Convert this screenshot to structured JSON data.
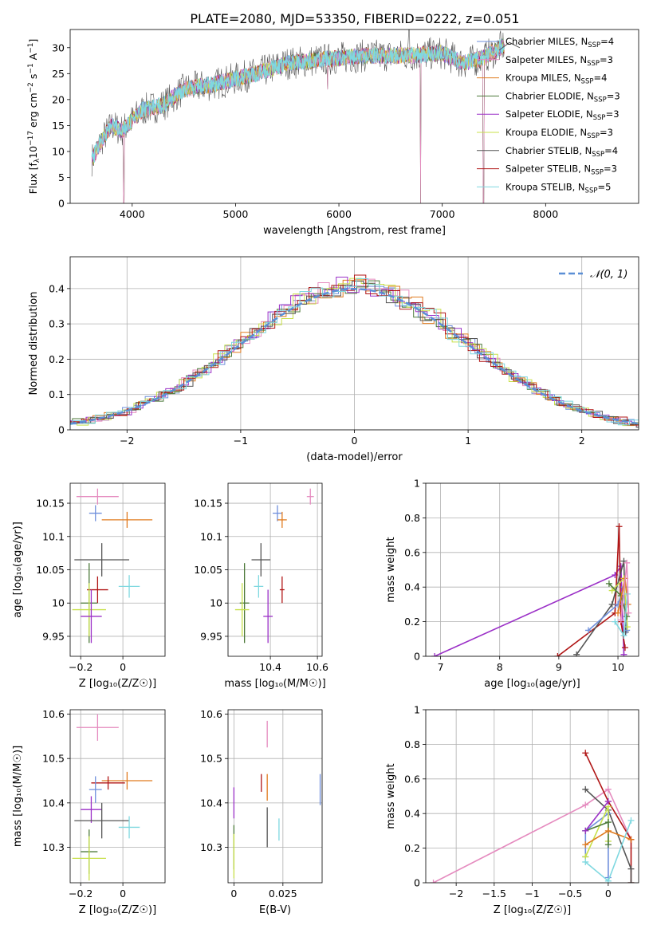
{
  "title": "PLATE=2080, MJD=53350, FIBERID=0222, z=0.051",
  "colors": {
    "chabrier_miles": "#6f8fdc",
    "salpeter_miles": "#e58bbf",
    "kroupa_miles": "#e07b1f",
    "chabrier_elodie": "#4d7a3a",
    "salpeter_elodie": "#9b30c7",
    "kroupa_elodie": "#c8e04a",
    "chabrier_stelib": "#555555",
    "salpeter_stelib": "#b01515",
    "kroupa_stelib": "#7fd8e0",
    "gaussian": "#5b8fd6",
    "grid": "#b0b0b0"
  },
  "legend": [
    {
      "label": "Chabrier MILES, N",
      "sub": "SSP",
      "tail": "=4",
      "color": "chabrier_miles"
    },
    {
      "label": "Salpeter MILES, N",
      "sub": "SSP",
      "tail": "=3",
      "color": "salpeter_miles"
    },
    {
      "label": "Kroupa MILES, N",
      "sub": "SSP",
      "tail": "=4",
      "color": "kroupa_miles"
    },
    {
      "label": "Chabrier ELODIE, N",
      "sub": "SSP",
      "tail": "=3",
      "color": "chabrier_elodie"
    },
    {
      "label": "Salpeter ELODIE, N",
      "sub": "SSP",
      "tail": "=3",
      "color": "salpeter_elodie"
    },
    {
      "label": "Kroupa ELODIE, N",
      "sub": "SSP",
      "tail": "=3",
      "color": "kroupa_elodie"
    },
    {
      "label": "Chabrier STELIB, N",
      "sub": "SSP",
      "tail": "=4",
      "color": "chabrier_stelib"
    },
    {
      "label": "Salpeter STELIB, N",
      "sub": "SSP",
      "tail": "=3",
      "color": "salpeter_stelib"
    },
    {
      "label": "Kroupa STELIB, N",
      "sub": "SSP",
      "tail": "=5",
      "color": "kroupa_stelib"
    }
  ],
  "chart_data": [
    {
      "id": "spectrum",
      "type": "line",
      "xlabel": "wavelength [Angstrom, rest frame]",
      "ylabel": "Flux [f",
      "ylabel_parts": [
        "Flux [f",
        "λ",
        "10",
        "−17",
        " erg cm",
        "−2",
        " s",
        "−1",
        " A",
        "−1",
        "]"
      ],
      "xlim": [
        3400,
        8900
      ],
      "ylim": [
        0,
        33.5
      ],
      "xticks": [
        4000,
        5000,
        6000,
        7000,
        8000
      ],
      "yticks": [
        0,
        5,
        10,
        15,
        20,
        25,
        30
      ],
      "continuum": [
        [
          3600,
          8
        ],
        [
          3700,
          12
        ],
        [
          3800,
          15
        ],
        [
          3900,
          14
        ],
        [
          4000,
          16
        ],
        [
          4100,
          18
        ],
        [
          4300,
          19
        ],
        [
          4500,
          22
        ],
        [
          4800,
          23
        ],
        [
          5000,
          24
        ],
        [
          5200,
          25
        ],
        [
          5500,
          27
        ],
        [
          6000,
          28
        ],
        [
          6300,
          28.5
        ],
        [
          6700,
          28.5
        ],
        [
          7000,
          29
        ],
        [
          7200,
          27
        ],
        [
          7400,
          28
        ],
        [
          7600,
          30.5
        ]
      ],
      "spikes_down": [
        [
          3920,
          0
        ],
        [
          5890,
          22
        ],
        [
          6790,
          0
        ],
        [
          7400,
          0
        ]
      ],
      "spikes_up": [
        [
          6680,
          33.5
        ]
      ]
    },
    {
      "id": "residuals",
      "type": "step",
      "xlabel": "(data-model)/error",
      "ylabel": "Normed distribution",
      "xlim": [
        -2.5,
        2.5
      ],
      "ylim": [
        0,
        0.49
      ],
      "xticks": [
        -2,
        -1,
        0,
        1,
        2
      ],
      "yticks": [
        0.0,
        0.1,
        0.2,
        0.3,
        0.4
      ],
      "legend": "𝒩(0, 1)"
    },
    {
      "id": "age_vs_Z",
      "type": "errorbar",
      "xlabel": "Z [log₁₀(Z/Z☉)]",
      "ylabel": "age  [log₁₀(age/yr)]",
      "xlim": [
        -0.25,
        0.2
      ],
      "ylim": [
        9.92,
        10.18
      ],
      "xticks": [
        -0.2,
        0.0
      ],
      "yticks": [
        9.95,
        10.0,
        10.05,
        10.1,
        10.15
      ],
      "points": [
        {
          "series": "salpeter_miles",
          "x": -0.12,
          "y": 10.16,
          "xerr": 0.1,
          "yerr": 0.012
        },
        {
          "series": "chabrier_miles",
          "x": -0.13,
          "y": 10.135,
          "xerr": 0.03,
          "yerr": 0.012
        },
        {
          "series": "kroupa_miles",
          "x": 0.02,
          "y": 10.125,
          "xerr": 0.12,
          "yerr": 0.012
        },
        {
          "series": "chabrier_stelib",
          "x": -0.1,
          "y": 10.065,
          "xerr": 0.13,
          "yerr": 0.025
        },
        {
          "series": "salpeter_stelib",
          "x": -0.12,
          "y": 10.02,
          "xerr": 0.05,
          "yerr": 0.02
        },
        {
          "series": "kroupa_stelib",
          "x": 0.03,
          "y": 10.025,
          "xerr": 0.05,
          "yerr": 0.017
        },
        {
          "series": "chabrier_elodie",
          "x": -0.16,
          "y": 10.0,
          "xerr": 0.04,
          "yerr": 0.06
        },
        {
          "series": "kroupa_elodie",
          "x": -0.16,
          "y": 9.99,
          "xerr": 0.08,
          "yerr": 0.04
        },
        {
          "series": "salpeter_elodie",
          "x": -0.15,
          "y": 9.98,
          "xerr": 0.05,
          "yerr": 0.04
        }
      ]
    },
    {
      "id": "age_vs_mass",
      "type": "errorbar",
      "xlabel": "mass [log₁₀(M/M☉)]",
      "ylabel": "",
      "xlim": [
        10.22,
        10.62
      ],
      "ylim": [
        9.92,
        10.18
      ],
      "xticks": [
        10.4,
        10.6
      ],
      "yticks": [
        9.95,
        10.0,
        10.05,
        10.1,
        10.15
      ],
      "points": [
        {
          "series": "salpeter_miles",
          "x": 10.57,
          "y": 10.16,
          "xerr": 0.015,
          "yerr": 0.012
        },
        {
          "series": "chabrier_miles",
          "x": 10.43,
          "y": 10.135,
          "xerr": 0.02,
          "yerr": 0.012
        },
        {
          "series": "kroupa_miles",
          "x": 10.45,
          "y": 10.125,
          "xerr": 0.02,
          "yerr": 0.012
        },
        {
          "series": "chabrier_stelib",
          "x": 10.36,
          "y": 10.065,
          "xerr": 0.04,
          "yerr": 0.025
        },
        {
          "series": "salpeter_stelib",
          "x": 10.45,
          "y": 10.02,
          "xerr": 0.01,
          "yerr": 0.02
        },
        {
          "series": "kroupa_stelib",
          "x": 10.35,
          "y": 10.025,
          "xerr": 0.02,
          "yerr": 0.017
        },
        {
          "series": "chabrier_elodie",
          "x": 10.29,
          "y": 10.0,
          "xerr": 0.02,
          "yerr": 0.06
        },
        {
          "series": "kroupa_elodie",
          "x": 10.28,
          "y": 9.99,
          "xerr": 0.03,
          "yerr": 0.04
        },
        {
          "series": "salpeter_elodie",
          "x": 10.39,
          "y": 9.98,
          "xerr": 0.02,
          "yerr": 0.04
        }
      ]
    },
    {
      "id": "weight_vs_age",
      "type": "line",
      "xlabel": "age  [log₁₀(age/yr)]",
      "ylabel": "mass weight",
      "xlim": [
        6.75,
        10.35
      ],
      "ylim": [
        0,
        1.0
      ],
      "xticks": [
        7,
        8,
        9,
        10
      ],
      "yticks": [
        0.0,
        0.2,
        0.4,
        0.6,
        0.8,
        1.0
      ],
      "series": [
        {
          "name": "salpeter_elodie",
          "x": [
            6.9,
            9.95,
            10.05,
            10.1
          ],
          "y": [
            0.0,
            0.47,
            0.52,
            0.01
          ]
        },
        {
          "name": "salpeter_stelib",
          "x": [
            8.98,
            9.95,
            10.02,
            10.05,
            10.12
          ],
          "y": [
            0.0,
            0.25,
            0.75,
            0.2,
            0.05
          ]
        },
        {
          "name": "chabrier_stelib",
          "x": [
            9.3,
            9.9,
            10.1,
            10.13
          ],
          "y": [
            0.01,
            0.3,
            0.55,
            0.14
          ]
        },
        {
          "name": "chabrier_miles",
          "x": [
            9.5,
            10.0,
            10.1,
            10.15
          ],
          "y": [
            0.15,
            0.3,
            0.4,
            0.15
          ]
        },
        {
          "name": "kroupa_elodie",
          "x": [
            9.9,
            10.1,
            10.16
          ],
          "y": [
            0.38,
            0.45,
            0.17
          ]
        },
        {
          "name": "chabrier_elodie",
          "x": [
            9.85,
            10.05,
            10.15
          ],
          "y": [
            0.42,
            0.35,
            0.23
          ]
        },
        {
          "name": "kroupa_miles",
          "x": [
            10.0,
            10.12,
            10.17
          ],
          "y": [
            0.25,
            0.45,
            0.3
          ]
        },
        {
          "name": "kroupa_stelib",
          "x": [
            9.95,
            10.1,
            10.16
          ],
          "y": [
            0.2,
            0.12,
            0.36
          ]
        },
        {
          "name": "salpeter_miles",
          "x": [
            10.05,
            10.15,
            10.18
          ],
          "y": [
            0.21,
            0.54,
            0.25
          ]
        }
      ]
    },
    {
      "id": "mass_vs_Z",
      "type": "errorbar",
      "xlabel": "Z [log₁₀(Z/Z☉)]",
      "ylabel": "mass [log₁₀(M/M☉)]",
      "xlim": [
        -0.25,
        0.2
      ],
      "ylim": [
        10.22,
        10.61
      ],
      "xticks": [
        -0.2,
        0.0
      ],
      "yticks": [
        10.3,
        10.4,
        10.5,
        10.6
      ],
      "points": [
        {
          "series": "salpeter_miles",
          "x": -0.12,
          "y": 10.57,
          "xerr": 0.1,
          "yerr": 0.03
        },
        {
          "series": "kroupa_miles",
          "x": 0.02,
          "y": 10.45,
          "xerr": 0.12,
          "yerr": 0.02
        },
        {
          "series": "salpeter_stelib",
          "x": -0.07,
          "y": 10.445,
          "xerr": 0.08,
          "yerr": 0.015
        },
        {
          "series": "chabrier_miles",
          "x": -0.13,
          "y": 10.43,
          "xerr": 0.03,
          "yerr": 0.03
        },
        {
          "series": "salpeter_elodie",
          "x": -0.15,
          "y": 10.385,
          "xerr": 0.05,
          "yerr": 0.03
        },
        {
          "series": "chabrier_stelib",
          "x": -0.1,
          "y": 10.36,
          "xerr": 0.13,
          "yerr": 0.04
        },
        {
          "series": "kroupa_stelib",
          "x": 0.03,
          "y": 10.345,
          "xerr": 0.05,
          "yerr": 0.025
        },
        {
          "series": "chabrier_elodie",
          "x": -0.16,
          "y": 10.29,
          "xerr": 0.04,
          "yerr": 0.05
        },
        {
          "series": "kroupa_elodie",
          "x": -0.16,
          "y": 10.275,
          "xerr": 0.08,
          "yerr": 0.05
        }
      ]
    },
    {
      "id": "mass_vs_EBV",
      "type": "errorbar",
      "xlabel": "E(B-V)",
      "ylabel": "",
      "xlim": [
        -0.003,
        0.045
      ],
      "ylim": [
        10.22,
        10.61
      ],
      "xticks": [
        0.0,
        0.025
      ],
      "yticks": [
        10.3,
        10.4,
        10.5,
        10.6
      ],
      "points": [
        {
          "series": "salpeter_miles",
          "x": 0.017,
          "y": 10.555,
          "xerr": 0,
          "yerr": 0.03
        },
        {
          "series": "kroupa_miles",
          "x": 0.017,
          "y": 10.435,
          "xerr": 0,
          "yerr": 0.03
        },
        {
          "series": "salpeter_stelib",
          "x": 0.014,
          "y": 10.445,
          "xerr": 0,
          "yerr": 0.02
        },
        {
          "series": "chabrier_miles",
          "x": 0.044,
          "y": 10.43,
          "xerr": 0,
          "yerr": 0.035
        },
        {
          "series": "salpeter_elodie",
          "x": 0.0,
          "y": 10.4,
          "xerr": 0,
          "yerr": 0.035
        },
        {
          "series": "chabrier_stelib",
          "x": 0.017,
          "y": 10.345,
          "xerr": 0,
          "yerr": 0.045
        },
        {
          "series": "kroupa_stelib",
          "x": 0.023,
          "y": 10.34,
          "xerr": 0,
          "yerr": 0.025
        },
        {
          "series": "chabrier_elodie",
          "x": 0.0,
          "y": 10.3,
          "xerr": 0,
          "yerr": 0.05
        },
        {
          "series": "kroupa_elodie",
          "x": 0.0,
          "y": 10.28,
          "xerr": 0,
          "yerr": 0.05
        }
      ]
    },
    {
      "id": "weight_vs_Z",
      "type": "line",
      "xlabel": "Z [log₁₀(Z/Z☉)]",
      "ylabel": "mass weight",
      "xlim": [
        -2.4,
        0.4
      ],
      "ylim": [
        0,
        1.0
      ],
      "xticks": [
        -2.0,
        -1.5,
        -1.0,
        -0.5,
        0.0
      ],
      "yticks": [
        0.0,
        0.2,
        0.4,
        0.6,
        0.8,
        1.0
      ],
      "series": [
        {
          "name": "salpeter_miles",
          "x": [
            -2.3,
            -0.3,
            0.0,
            0.3
          ],
          "y": [
            0.0,
            0.45,
            0.54,
            0.25
          ]
        },
        {
          "name": "salpeter_stelib",
          "x": [
            -0.3,
            0.0,
            0.3,
            0.3
          ],
          "y": [
            0.75,
            0.47,
            0.25,
            0.0
          ]
        },
        {
          "name": "chabrier_stelib",
          "x": [
            -0.3,
            0.0,
            0.3,
            0.3
          ],
          "y": [
            0.54,
            0.42,
            0.08,
            0.0
          ]
        },
        {
          "name": "chabrier_miles",
          "x": [
            -0.3,
            -0.3,
            0.0,
            0.0
          ],
          "y": [
            0.15,
            0.3,
            0.4,
            0.03
          ]
        },
        {
          "name": "kroupa_elodie",
          "x": [
            -0.3,
            0.0,
            0.0
          ],
          "y": [
            0.15,
            0.44,
            0.24
          ]
        },
        {
          "name": "chabrier_elodie",
          "x": [
            -0.3,
            0.0,
            0.0
          ],
          "y": [
            0.3,
            0.35,
            0.22
          ]
        },
        {
          "name": "kroupa_miles",
          "x": [
            -0.3,
            0.0,
            0.3
          ],
          "y": [
            0.22,
            0.3,
            0.25
          ]
        },
        {
          "name": "kroupa_stelib",
          "x": [
            -0.3,
            0.0,
            0.3
          ],
          "y": [
            0.12,
            0.01,
            0.36
          ]
        },
        {
          "name": "salpeter_elodie",
          "x": [
            -0.3,
            0.0
          ],
          "y": [
            0.3,
            0.47
          ]
        }
      ]
    }
  ]
}
